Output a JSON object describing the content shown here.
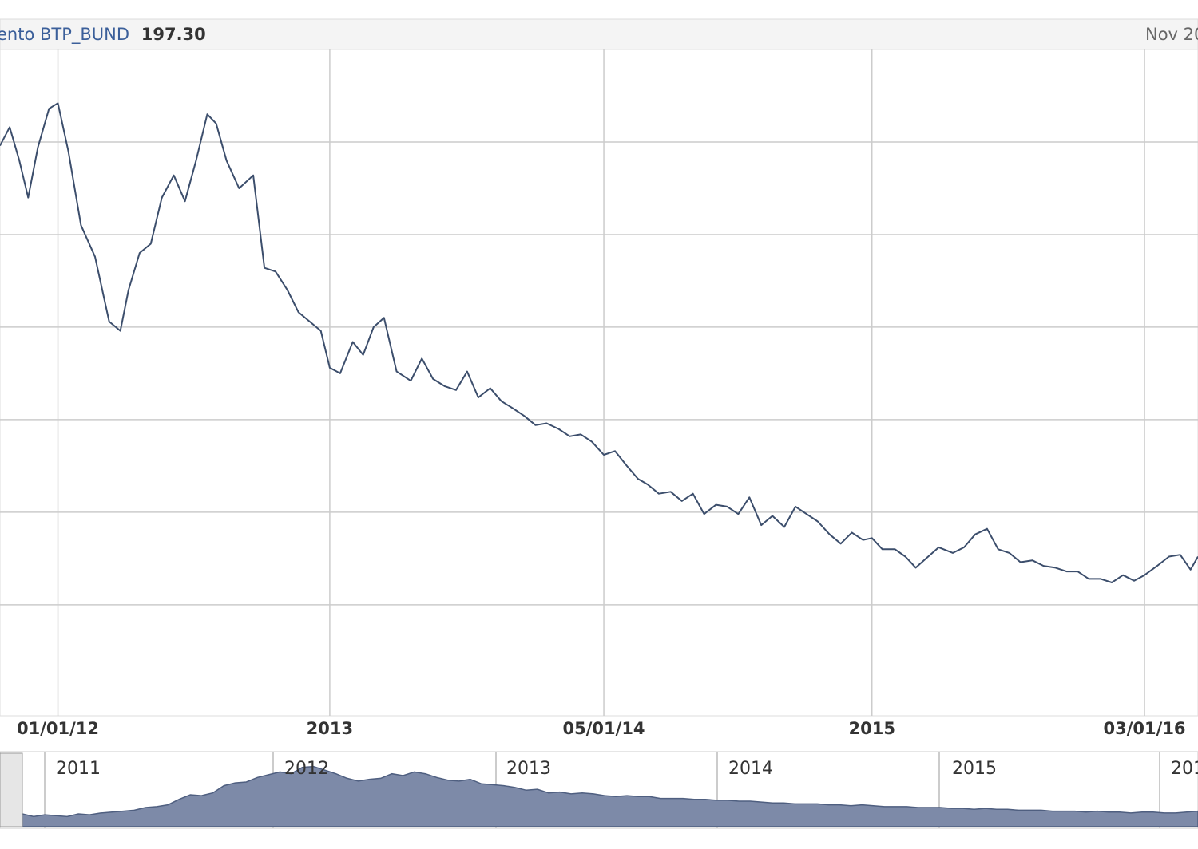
{
  "header": {
    "series_label": "ento BTP_BUND",
    "last_value": "197.30",
    "date_label": "Nov 20"
  },
  "colors": {
    "line": "#3c4e6c",
    "series_label": "#3b5f9a",
    "grid": "#cccccc",
    "navigator_fill": "#7d8aa8",
    "navigator_line": "#4f5f80"
  },
  "chart_data": {
    "type": "line",
    "title": "",
    "xlabel": "",
    "ylabel": "",
    "x_tick_labels": [
      "01/01/12",
      "2013",
      "05/01/14",
      "2015",
      "03/01/16"
    ],
    "x_tick_dates": [
      "2012-01-01",
      "2013-01-01",
      "2014-01-05",
      "2015-01-01",
      "2016-01-03"
    ],
    "x_range": [
      "2011-10-15",
      "2016-03-15"
    ],
    "grid": true,
    "series": [
      {
        "x": [
          "2011-10-15",
          "2011-10-28",
          "2011-11-10",
          "2011-11-22",
          "2011-12-05",
          "2011-12-20",
          "2012-01-01",
          "2012-01-15",
          "2012-02-01",
          "2012-02-20",
          "2012-03-10",
          "2012-03-25",
          "2012-04-05",
          "2012-04-20",
          "2012-05-05",
          "2012-05-20",
          "2012-06-05",
          "2012-06-20",
          "2012-07-05",
          "2012-07-20",
          "2012-08-01",
          "2012-08-15",
          "2012-09-01",
          "2012-09-20",
          "2012-10-05",
          "2012-10-20",
          "2012-11-05",
          "2012-11-20",
          "2012-12-05",
          "2012-12-20",
          "2013-01-01",
          "2013-01-15",
          "2013-02-01",
          "2013-02-15",
          "2013-03-01",
          "2013-03-15",
          "2013-04-01",
          "2013-04-20",
          "2013-05-05",
          "2013-05-20",
          "2013-06-05",
          "2013-06-20",
          "2013-07-05",
          "2013-07-20",
          "2013-08-05",
          "2013-08-20",
          "2013-09-05",
          "2013-09-20",
          "2013-10-05",
          "2013-10-20",
          "2013-11-05",
          "2013-11-20",
          "2013-12-05",
          "2013-12-20",
          "2014-01-05",
          "2014-01-20",
          "2014-02-05",
          "2014-02-20",
          "2014-03-05",
          "2014-03-20",
          "2014-04-05",
          "2014-04-20",
          "2014-05-05",
          "2014-05-20",
          "2014-06-05",
          "2014-06-20",
          "2014-07-05",
          "2014-07-20",
          "2014-08-05",
          "2014-08-20",
          "2014-09-05",
          "2014-09-20",
          "2014-10-05",
          "2014-10-20",
          "2014-11-05",
          "2014-11-20",
          "2014-12-05",
          "2014-12-20",
          "2015-01-01",
          "2015-01-15",
          "2015-02-01",
          "2015-02-15",
          "2015-03-01",
          "2015-03-15",
          "2015-04-01",
          "2015-04-20",
          "2015-05-05",
          "2015-05-20",
          "2015-06-05",
          "2015-06-20",
          "2015-07-05",
          "2015-07-20",
          "2015-08-05",
          "2015-08-20",
          "2015-09-05",
          "2015-09-20",
          "2015-10-05",
          "2015-10-20",
          "2015-11-05",
          "2015-11-20",
          "2015-12-05",
          "2015-12-20",
          "2016-01-03",
          "2016-01-20",
          "2016-02-05",
          "2016-02-20",
          "2016-03-05",
          "2016-03-15"
        ],
        "y": [
          498,
          508,
          490,
          470,
          497,
          518,
          521,
          495,
          455,
          438,
          403,
          398,
          420,
          440,
          445,
          470,
          482,
          468,
          490,
          515,
          510,
          490,
          475,
          482,
          432,
          430,
          420,
          408,
          403,
          398,
          378,
          375,
          392,
          385,
          400,
          405,
          376,
          371,
          383,
          372,
          368,
          366,
          376,
          362,
          367,
          360,
          356,
          352,
          347,
          348,
          345,
          341,
          342,
          338,
          331,
          333,
          325,
          318,
          315,
          310,
          311,
          306,
          310,
          299,
          304,
          303,
          299,
          308,
          293,
          298,
          292,
          303,
          299,
          295,
          288,
          283,
          289,
          285,
          286,
          280,
          280,
          276,
          270,
          275,
          281,
          278,
          281,
          288,
          291,
          280,
          278,
          273,
          274,
          271,
          270,
          268,
          268,
          264,
          264,
          262,
          266,
          263,
          266,
          271,
          276,
          277,
          269,
          276
        ]
      }
    ]
  },
  "navigator": {
    "year_labels": [
      "2011",
      "2012",
      "2013",
      "2014",
      "2015",
      "201"
    ],
    "values": [
      12,
      12,
      14,
      11,
      13,
      12,
      11,
      14,
      13,
      15,
      16,
      17,
      18,
      21,
      22,
      24,
      30,
      35,
      34,
      37,
      45,
      48,
      49,
      54,
      57,
      60,
      58,
      65,
      66,
      62,
      58,
      53,
      50,
      52,
      53,
      58,
      56,
      60,
      58,
      54,
      51,
      50,
      52,
      47,
      46,
      45,
      43,
      40,
      41,
      37,
      38,
      36,
      37,
      36,
      34,
      33,
      34,
      33,
      33,
      31,
      31,
      31,
      30,
      30,
      29,
      29,
      28,
      28,
      27,
      26,
      26,
      25,
      25,
      25,
      24,
      24,
      23,
      24,
      23,
      22,
      22,
      22,
      21,
      21,
      21,
      20,
      20,
      19,
      20,
      19,
      19,
      18,
      18,
      18,
      17,
      17,
      17,
      16,
      17,
      16,
      16,
      15,
      16,
      16,
      15,
      15,
      16,
      17
    ]
  }
}
